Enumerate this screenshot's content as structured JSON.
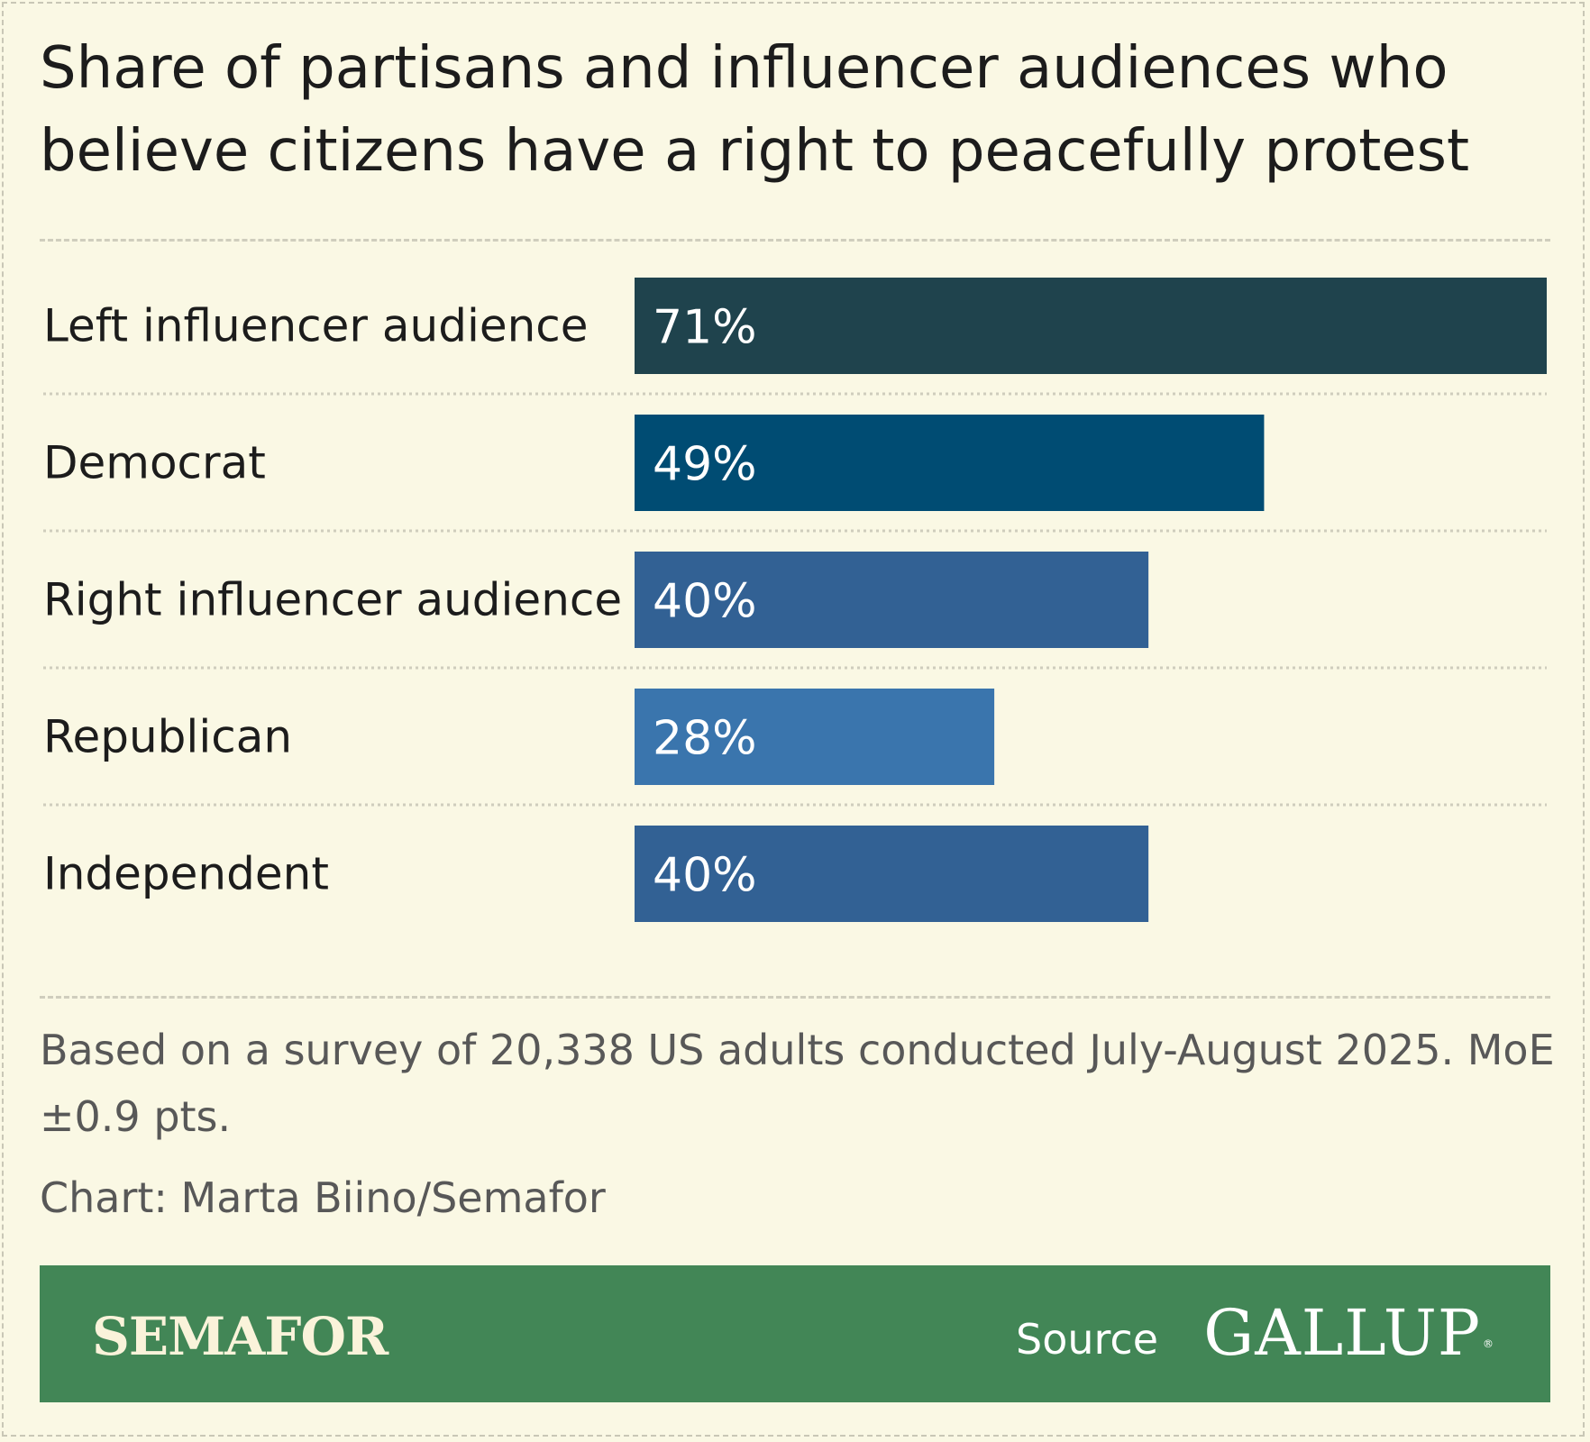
{
  "title": "Share of partisans and influencer audiences who believe citizens have a right to peacefully protest",
  "chart_data": {
    "type": "bar",
    "orientation": "horizontal",
    "categories": [
      "Left influencer audience",
      "Democrat",
      "Right influencer audience",
      "Republican",
      "Independent"
    ],
    "values": [
      71,
      49,
      40,
      28,
      40
    ],
    "value_labels": [
      "71%",
      "49%",
      "40%",
      "28%",
      "40%"
    ],
    "colors": [
      "#1f434d",
      "#004c73",
      "#326194",
      "#3a75ad",
      "#326194"
    ],
    "title": "Share of partisans and influencer audiences who believe citizens have a right to peacefully protest",
    "xlabel": "",
    "ylabel": "",
    "xlim": [
      0,
      71
    ],
    "grid": false,
    "legend": "none"
  },
  "footnote": "Based on a survey of 20,338 US adults conducted July-August 2025. MoE ±0.9 pts.",
  "credit": "Chart: Marta Biino/Semafor",
  "banner": {
    "brand": "SEMAFOR",
    "source_label": "Source",
    "source_name": "GALLUP",
    "registered_mark": "®",
    "background": "#428656"
  },
  "colors": {
    "background": "#faf8e4",
    "text": "#1c1c1c",
    "muted_text": "#585858"
  }
}
